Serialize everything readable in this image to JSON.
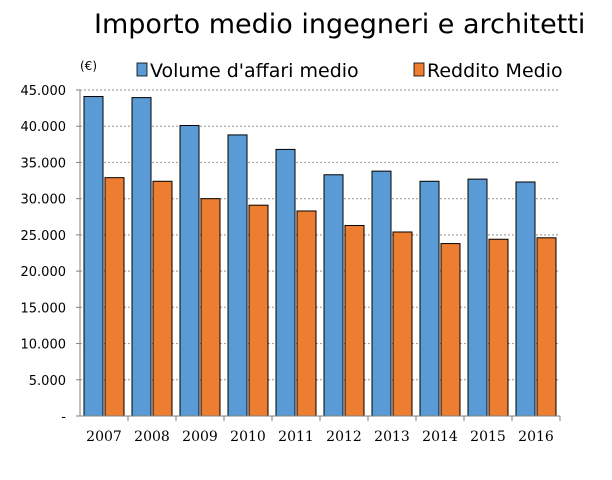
{
  "chart_data": {
    "type": "bar",
    "title": "Importo medio ingegneri e architetti",
    "unit_label": "(€)",
    "categories": [
      "2007",
      "2008",
      "2009",
      "2010",
      "2011",
      "2012",
      "2013",
      "2014",
      "2015",
      "2016"
    ],
    "series": [
      {
        "name": "Volume d'affari medio",
        "color": "#5b9bd5",
        "values": [
          44100,
          43950,
          40100,
          38800,
          36800,
          33300,
          33800,
          32400,
          32700,
          32300
        ]
      },
      {
        "name": "Reddito Medio",
        "color": "#ed7d31",
        "values": [
          32900,
          32400,
          30000,
          29100,
          28300,
          26300,
          25400,
          23800,
          24400,
          24600
        ]
      }
    ],
    "ylim": [
      0,
      45000
    ],
    "yticks": [
      0,
      5000,
      10000,
      15000,
      20000,
      25000,
      30000,
      35000,
      40000,
      45000
    ],
    "ytick_labels": [
      "-",
      "5.000",
      "10.000",
      "15.000",
      "20.000",
      "25.000",
      "30.000",
      "35.000",
      "40.000",
      "45.000"
    ],
    "grid": true,
    "legend_position": "top"
  }
}
